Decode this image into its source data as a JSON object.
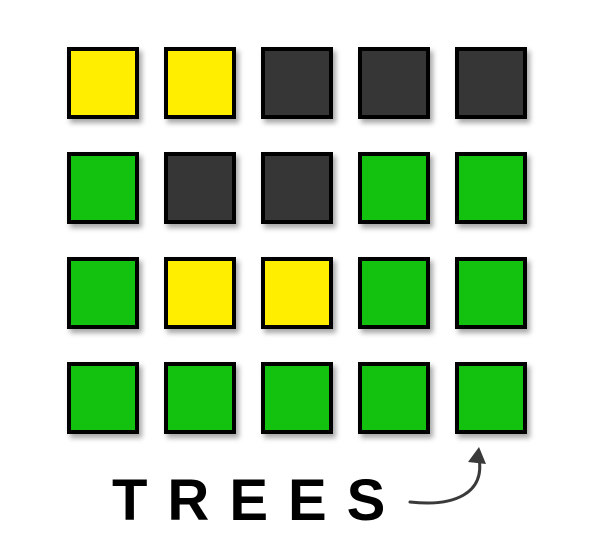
{
  "game": {
    "colors": {
      "correct": "#12c20e",
      "present": "#ffee00",
      "absent": "#363636",
      "tile_border": "#000000",
      "arrow": "#3a3a3a"
    },
    "grid": [
      [
        "present",
        "present",
        "absent",
        "absent",
        "absent"
      ],
      [
        "correct",
        "absent",
        "absent",
        "correct",
        "correct"
      ],
      [
        "correct",
        "present",
        "present",
        "correct",
        "correct"
      ],
      [
        "correct",
        "correct",
        "correct",
        "correct",
        "correct"
      ]
    ],
    "answer": "TREES",
    "arrow_icon": "curved-arrow-icon"
  }
}
